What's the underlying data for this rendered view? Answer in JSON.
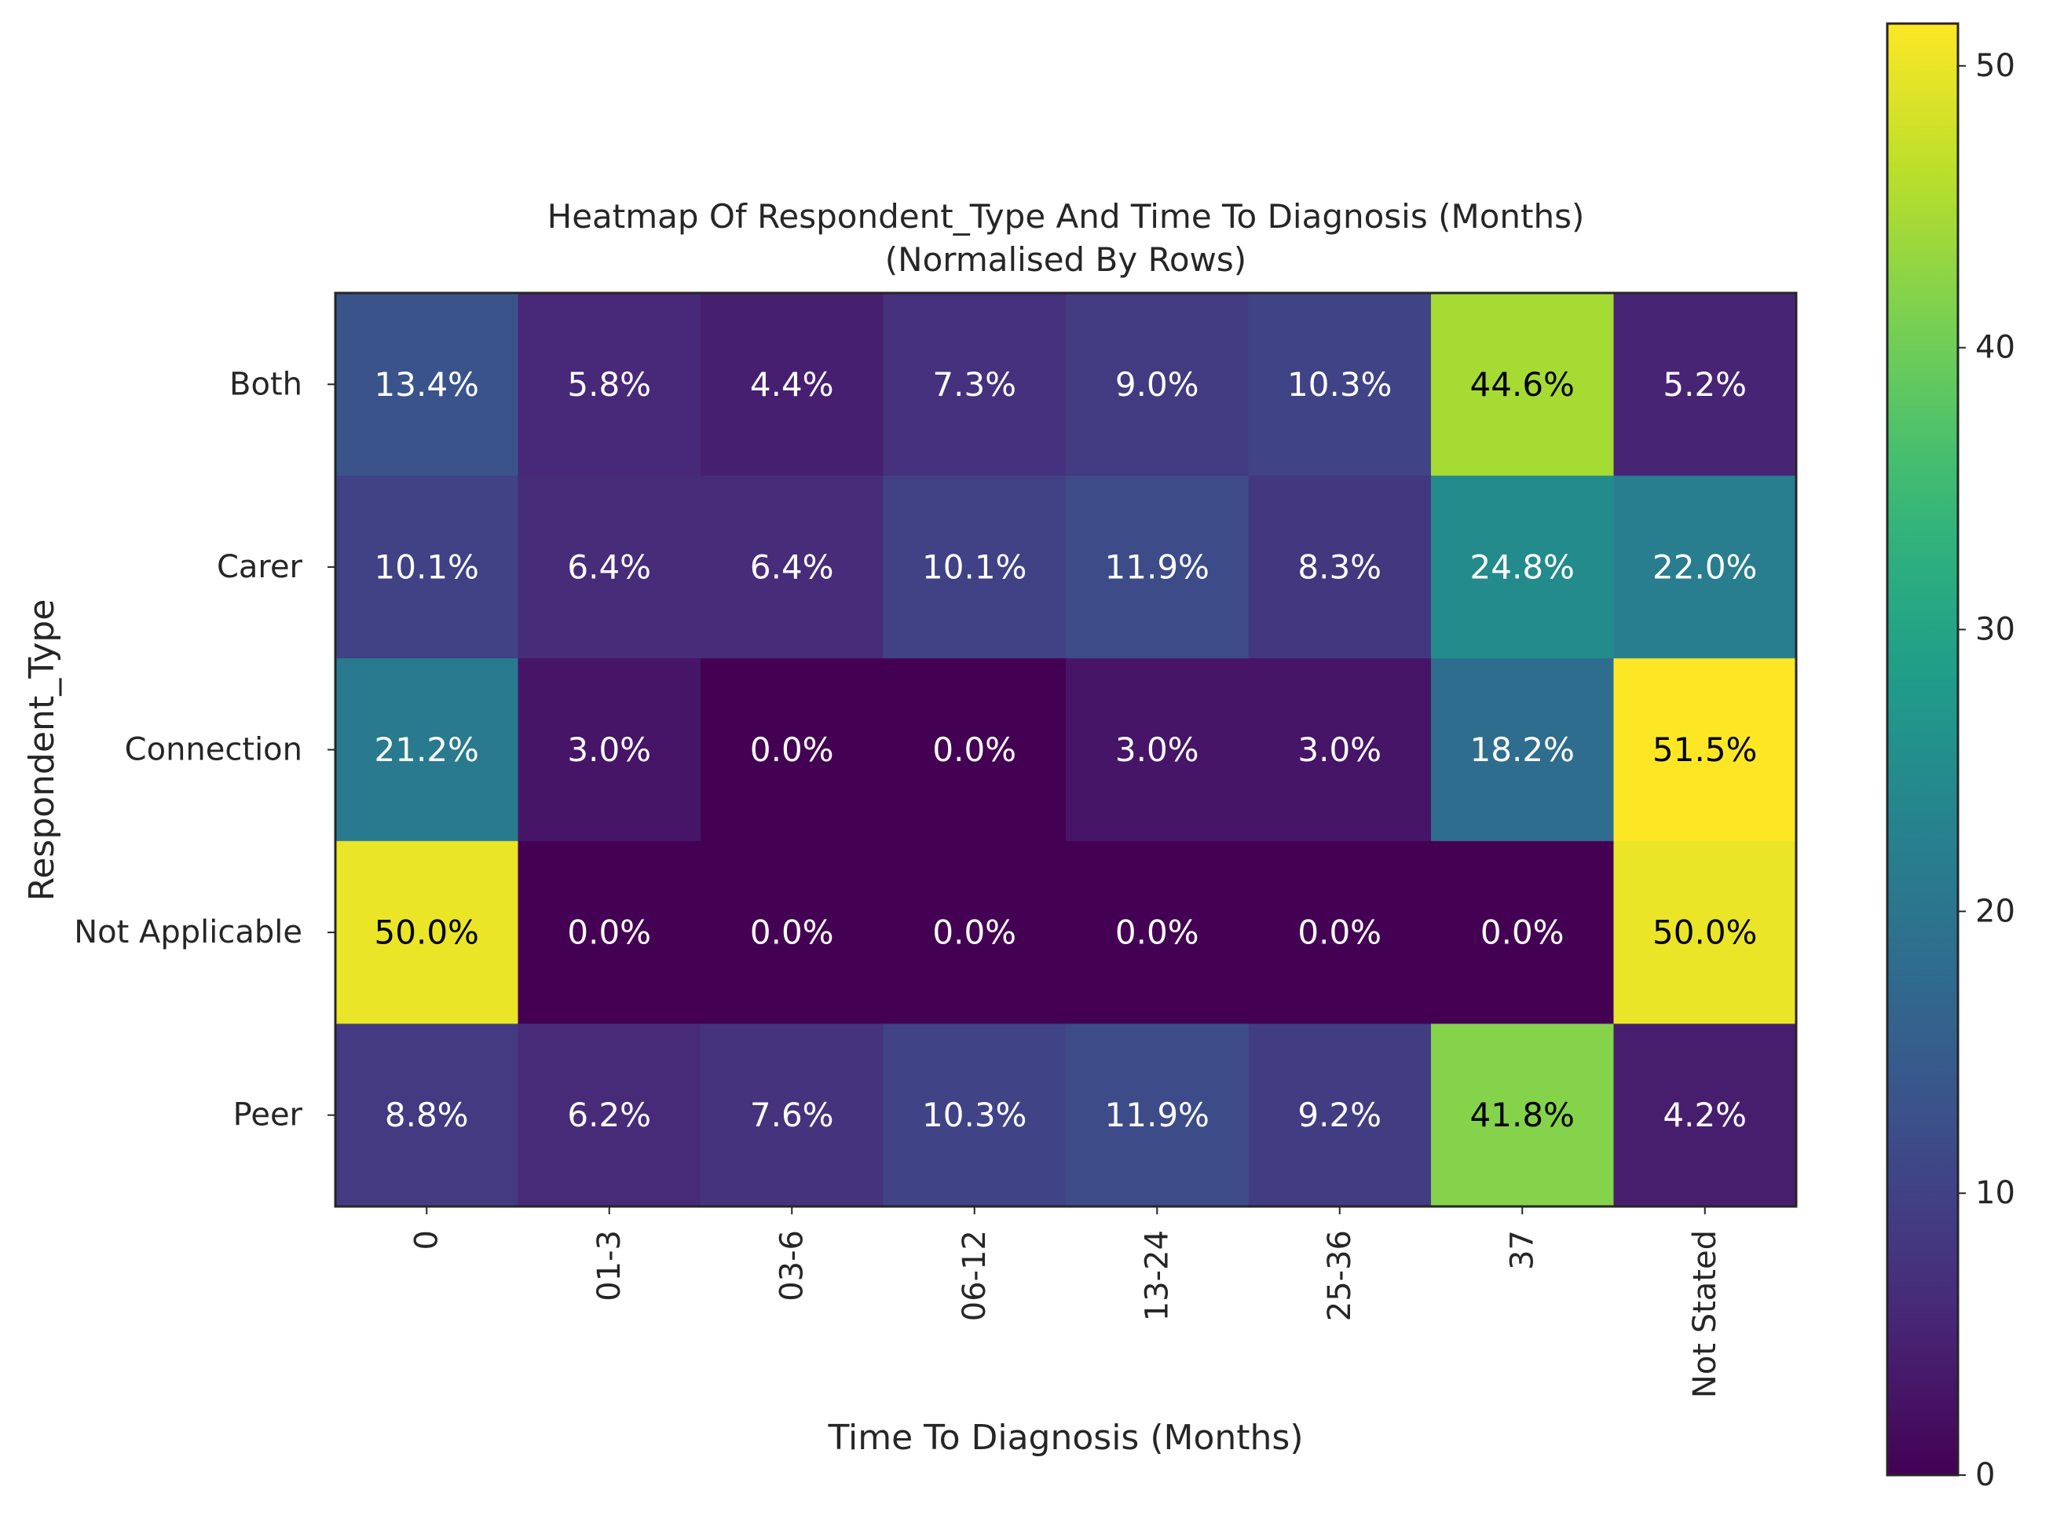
{
  "chart_data": {
    "type": "heatmap",
    "title": "Heatmap Of Respondent_Type And Time To Diagnosis (Months)",
    "subtitle": "(Normalised By Rows)",
    "xlabel": "Time To Diagnosis (Months)",
    "ylabel": "Respondent_Type",
    "x_categories": [
      "0",
      "01-3",
      "03-6",
      "06-12",
      "13-24",
      "25-36",
      "37",
      "Not Stated"
    ],
    "y_categories": [
      "Both",
      "Carer",
      "Connection",
      "Not Applicable",
      "Peer"
    ],
    "values": [
      [
        13.4,
        5.8,
        4.4,
        7.3,
        9.0,
        10.3,
        44.6,
        5.2
      ],
      [
        10.1,
        6.4,
        6.4,
        10.1,
        11.9,
        8.3,
        24.8,
        22.0
      ],
      [
        21.2,
        3.0,
        0.0,
        0.0,
        3.0,
        3.0,
        18.2,
        51.5
      ],
      [
        50.0,
        0.0,
        0.0,
        0.0,
        0.0,
        0.0,
        0.0,
        50.0
      ],
      [
        8.8,
        6.2,
        7.6,
        10.3,
        11.9,
        9.2,
        41.8,
        4.2
      ]
    ],
    "value_format": "percent_1dp",
    "colormap": "viridis",
    "vmin": 0,
    "vmax": 51.5,
    "colorbar_ticks": [
      0,
      10,
      20,
      30,
      40,
      50
    ],
    "grid": false
  }
}
